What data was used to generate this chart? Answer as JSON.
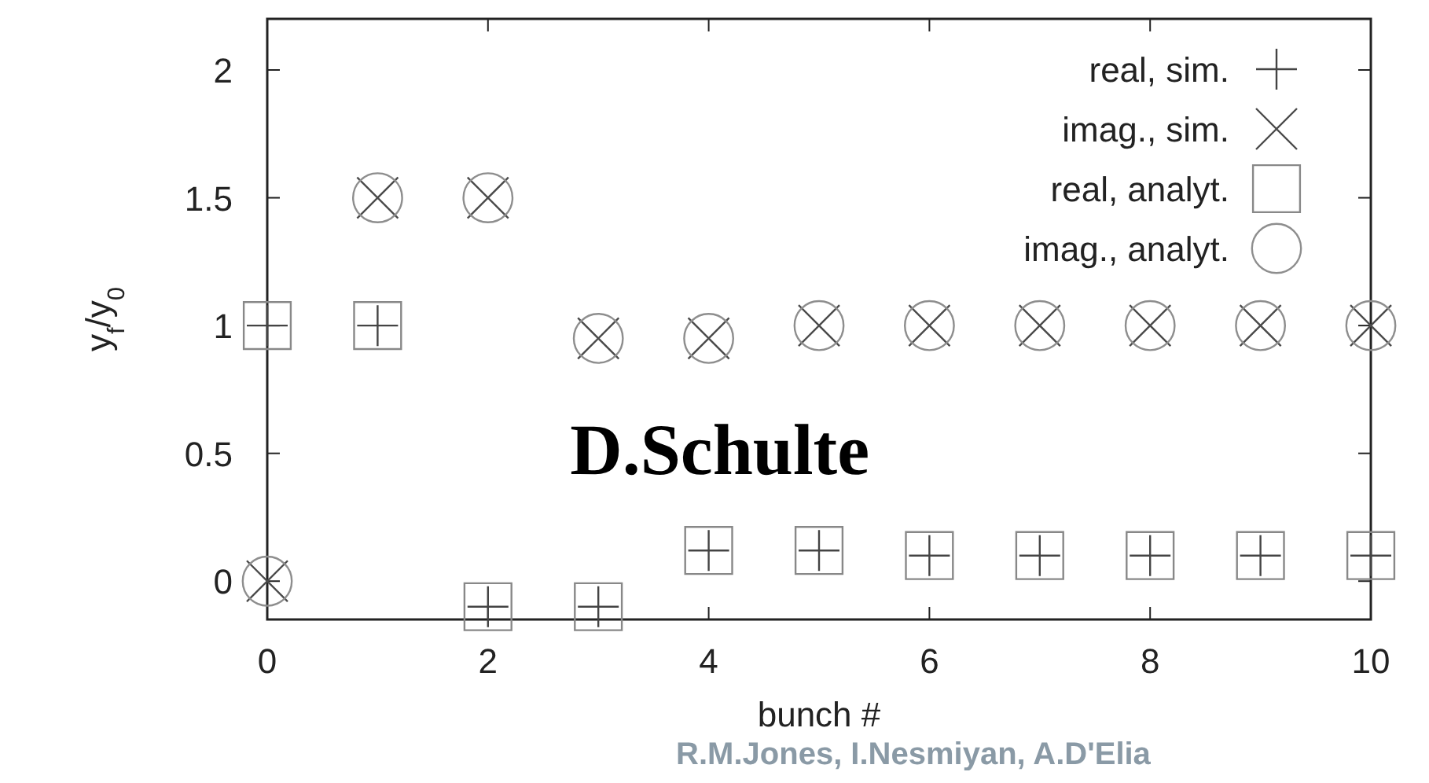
{
  "chart_data": {
    "type": "scatter",
    "xlabel": "bunch #",
    "ylabel": "y$_{f}$/y$_{0}$",
    "x": [
      0,
      1,
      2,
      3,
      4,
      5,
      6,
      7,
      8,
      9,
      10
    ],
    "series": [
      {
        "name": "real, sim.",
        "color": "#444444",
        "values": [
          1,
          1,
          -0.1,
          -0.1,
          0.12,
          0.12,
          0.1,
          0.1,
          0.1,
          0.1,
          0.1
        ]
      },
      {
        "name": "imag., sim.",
        "color": "#4a4a4a",
        "values": [
          0,
          1.5,
          1.5,
          0.95,
          0.95,
          1,
          1,
          1,
          1,
          1,
          1
        ]
      },
      {
        "name": "real, analyt.",
        "color": "#888888",
        "values": [
          1,
          1,
          -0.1,
          -0.1,
          0.12,
          0.12,
          0.1,
          0.1,
          0.1,
          0.1,
          0.1
        ]
      },
      {
        "name": "imag., analyt.",
        "color": "#8e8e8e",
        "values": [
          0,
          1.5,
          1.5,
          0.95,
          0.95,
          1,
          1,
          1,
          1,
          1,
          1
        ]
      }
    ],
    "xlim": [
      0,
      10
    ],
    "xticks": [
      0,
      2,
      4,
      6,
      8,
      10
    ],
    "ylim": [
      -0.15,
      2.2
    ],
    "yticks": [
      0,
      0.5,
      1,
      1.5,
      2
    ],
    "grid": false,
    "legend": "top right",
    "annotations": [
      "D.Schulte",
      "R.M.Jones, I.Nesmiyan, A.D'Elia"
    ]
  }
}
